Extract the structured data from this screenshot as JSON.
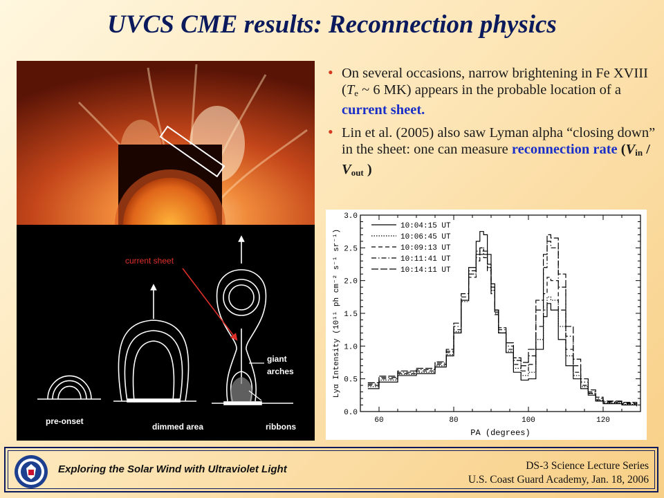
{
  "slide": {
    "title": "UVCS CME results:  Reconnection physics",
    "bullet1": {
      "pre": "On several occasions, narrow brightening in Fe XVIII (",
      "T": "T",
      "Tsub": "e",
      "mid": " ~ 6 MK) appears in the probable location of a ",
      "highlight": "current sheet."
    },
    "bullet2": {
      "pre": " Lin et al. (2005) also saw Lyman alpha “closing down” in the sheet: one can measure ",
      "highlight": "reconnection rate",
      "post1": " (",
      "V1": "V",
      "V1sub": "in",
      "slash": " / ",
      "V2": "V",
      "V2sub": "out",
      "post2": " )"
    }
  },
  "diagram": {
    "labels": {
      "current_sheet": "current sheet",
      "giant": "giant",
      "arches": "arches",
      "pre_onset": "pre-onset",
      "dimmed_area": "dimmed area",
      "ribbons": "ribbons"
    }
  },
  "chart_data": {
    "type": "line",
    "xlabel": "PA (degrees)",
    "ylabel": "Lyα Intensity (10¹¹ ph cm⁻² s⁻¹ sr⁻¹)",
    "xlim": [
      55,
      130
    ],
    "ylim": [
      0,
      3.0
    ],
    "xticks": [
      "60",
      "80",
      "100",
      "120"
    ],
    "yticks": [
      "0.0",
      "0.5",
      "1.0",
      "1.5",
      "2.0",
      "2.5",
      "3.0"
    ],
    "legend_position": "top-left",
    "series": [
      {
        "name": "10:04:15 UT",
        "dash": "solid",
        "x": [
          57,
          60,
          65,
          70,
          75,
          78,
          80,
          82,
          84,
          86,
          87,
          88,
          89,
          90,
          91,
          92,
          94,
          96,
          98,
          100,
          102,
          104,
          105,
          106,
          108,
          110,
          112,
          114,
          116,
          118,
          120,
          125,
          129
        ],
        "y": [
          0.35,
          0.45,
          0.55,
          0.58,
          0.68,
          0.85,
          1.2,
          1.7,
          2.2,
          2.6,
          2.75,
          2.7,
          2.4,
          1.95,
          1.55,
          1.2,
          0.9,
          0.6,
          0.48,
          0.5,
          0.95,
          1.45,
          1.65,
          1.55,
          1.1,
          0.7,
          0.5,
          0.35,
          0.25,
          0.16,
          0.12,
          0.1,
          0.08
        ]
      },
      {
        "name": "10:06:45 UT",
        "dash": "dotted",
        "x": [
          57,
          60,
          65,
          70,
          75,
          78,
          80,
          82,
          84,
          86,
          87,
          88,
          89,
          90,
          91,
          92,
          94,
          96,
          98,
          100,
          102,
          104,
          105,
          106,
          108,
          110,
          112,
          114,
          116,
          118,
          120,
          125,
          129
        ],
        "y": [
          0.38,
          0.48,
          0.57,
          0.6,
          0.7,
          0.87,
          1.22,
          1.68,
          2.1,
          2.45,
          2.5,
          2.45,
          2.2,
          1.85,
          1.5,
          1.2,
          0.92,
          0.66,
          0.55,
          0.6,
          1.1,
          1.55,
          1.75,
          1.7,
          1.3,
          0.85,
          0.55,
          0.38,
          0.27,
          0.17,
          0.13,
          0.11,
          0.09
        ]
      },
      {
        "name": "10:09:13 UT",
        "dash": "dashed",
        "x": [
          57,
          60,
          65,
          70,
          75,
          78,
          80,
          82,
          84,
          86,
          87,
          88,
          89,
          90,
          91,
          92,
          94,
          96,
          98,
          100,
          102,
          104,
          105,
          106,
          108,
          110,
          112,
          114,
          116,
          118,
          120,
          125,
          129
        ],
        "y": [
          0.4,
          0.5,
          0.58,
          0.62,
          0.72,
          0.9,
          1.25,
          1.7,
          2.05,
          2.3,
          2.4,
          2.35,
          2.15,
          1.8,
          1.48,
          1.2,
          0.95,
          0.72,
          0.62,
          0.72,
          1.3,
          1.8,
          2.05,
          2.0,
          1.55,
          0.95,
          0.6,
          0.4,
          0.28,
          0.18,
          0.14,
          0.12,
          0.1
        ]
      },
      {
        "name": "10:11:41 UT",
        "dash": "dashdot",
        "x": [
          57,
          60,
          65,
          70,
          75,
          78,
          80,
          82,
          84,
          86,
          87,
          88,
          89,
          90,
          91,
          92,
          94,
          96,
          98,
          100,
          102,
          104,
          105,
          106,
          108,
          110,
          112,
          114,
          116,
          118,
          120,
          125,
          129
        ],
        "y": [
          0.42,
          0.52,
          0.6,
          0.64,
          0.74,
          0.92,
          1.3,
          1.75,
          2.1,
          2.35,
          2.45,
          2.4,
          2.2,
          1.85,
          1.52,
          1.25,
          1.0,
          0.78,
          0.7,
          0.85,
          1.55,
          2.2,
          2.6,
          2.5,
          1.9,
          1.15,
          0.7,
          0.45,
          0.3,
          0.2,
          0.15,
          0.13,
          0.11
        ]
      },
      {
        "name": "10:14:11 UT",
        "dash": "longdash",
        "x": [
          57,
          60,
          65,
          70,
          75,
          78,
          80,
          82,
          84,
          86,
          87,
          88,
          89,
          90,
          91,
          92,
          94,
          96,
          98,
          100,
          102,
          104,
          105,
          106,
          108,
          110,
          112,
          114,
          116,
          118,
          120,
          125,
          129
        ],
        "y": [
          0.44,
          0.54,
          0.62,
          0.66,
          0.76,
          0.95,
          1.35,
          1.8,
          2.15,
          2.4,
          2.5,
          2.45,
          2.25,
          1.9,
          1.55,
          1.28,
          1.05,
          0.82,
          0.75,
          0.95,
          1.7,
          2.4,
          2.7,
          2.65,
          2.1,
          1.3,
          0.8,
          0.5,
          0.33,
          0.22,
          0.16,
          0.14,
          0.12
        ]
      }
    ]
  },
  "footer": {
    "left": "Exploring the Solar Wind with Ultraviolet Light",
    "right_line1": "DS-3 Science Lecture Series",
    "right_line2": "U.S. Coast Guard Academy, Jan. 18, 2006"
  }
}
